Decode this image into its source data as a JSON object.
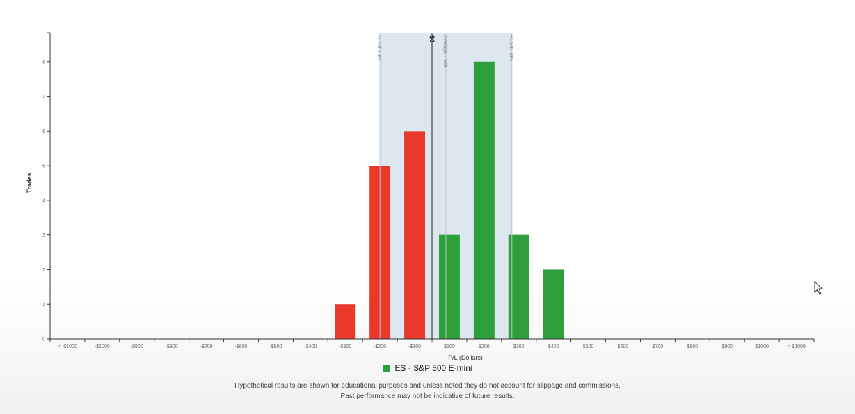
{
  "chart_data": {
    "type": "bar",
    "xlabel": "P/L (Dollars)",
    "ylabel": "Trades",
    "ylim": [
      0,
      9
    ],
    "yticks": [
      0,
      1,
      2,
      3,
      4,
      5,
      6,
      7,
      8
    ],
    "categories": [
      "< -$1000",
      "-$1000",
      "-$900",
      "-$800",
      "-$700",
      "-$600",
      "-$500",
      "-$400",
      "-$300",
      "-$200",
      "-$100",
      "$100",
      "$200",
      "$300",
      "$400",
      "$500",
      "$600",
      "$700",
      "$800",
      "$900",
      "$1000",
      "> $1000"
    ],
    "values": [
      0,
      0,
      0,
      0,
      0,
      0,
      0,
      0,
      1,
      5,
      6,
      3,
      8,
      3,
      2,
      0,
      0,
      0,
      0,
      0,
      0,
      0
    ],
    "colors": {
      "loss": "#e8392b",
      "gain": "#2e9e3a",
      "band": "#dde7f0"
    },
    "reference_lines": [
      {
        "label": "-1 Std. Dev",
        "value": -150
      },
      {
        "label": "$0",
        "value": 0
      },
      {
        "label": "Average Trade",
        "value": 40
      },
      {
        "label": "+1 Std. Dev",
        "value": 230
      }
    ],
    "legend": {
      "label": "ES - S&P 500 E-mini"
    }
  },
  "disclaimer": {
    "line1": "Hypothetical results are shown for educational purposes and unless noted they do not account for slippage and commissions.",
    "line2": "Past performance may not be indicative of future results."
  }
}
